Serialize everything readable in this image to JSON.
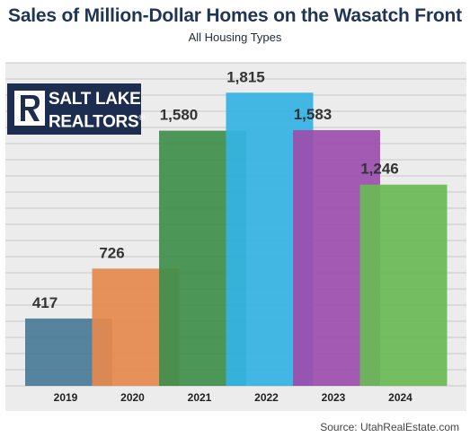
{
  "chart_data": {
    "type": "bar",
    "title": "Sales of Million-Dollar Homes on the Wasatch Front",
    "subtitle": "All Housing Types",
    "categories": [
      "2019",
      "2020",
      "2021",
      "2022",
      "2023",
      "2024"
    ],
    "values": [
      417,
      726,
      1580,
      1815,
      1583,
      1246
    ],
    "value_labels": [
      "417",
      "726",
      "1,580",
      "1,815",
      "1,583",
      "1,246"
    ],
    "colors": [
      "#4a7b97",
      "#e58a4f",
      "#3f8f4b",
      "#35b3e2",
      "#9c4fae",
      "#6bb956"
    ],
    "ylim": [
      0,
      2000
    ],
    "grid": true,
    "source": "Source: UtahRealEstate.com"
  },
  "logo": {
    "line1": "SALT LAKE",
    "line2": "REALTORS",
    "mark": "®"
  }
}
